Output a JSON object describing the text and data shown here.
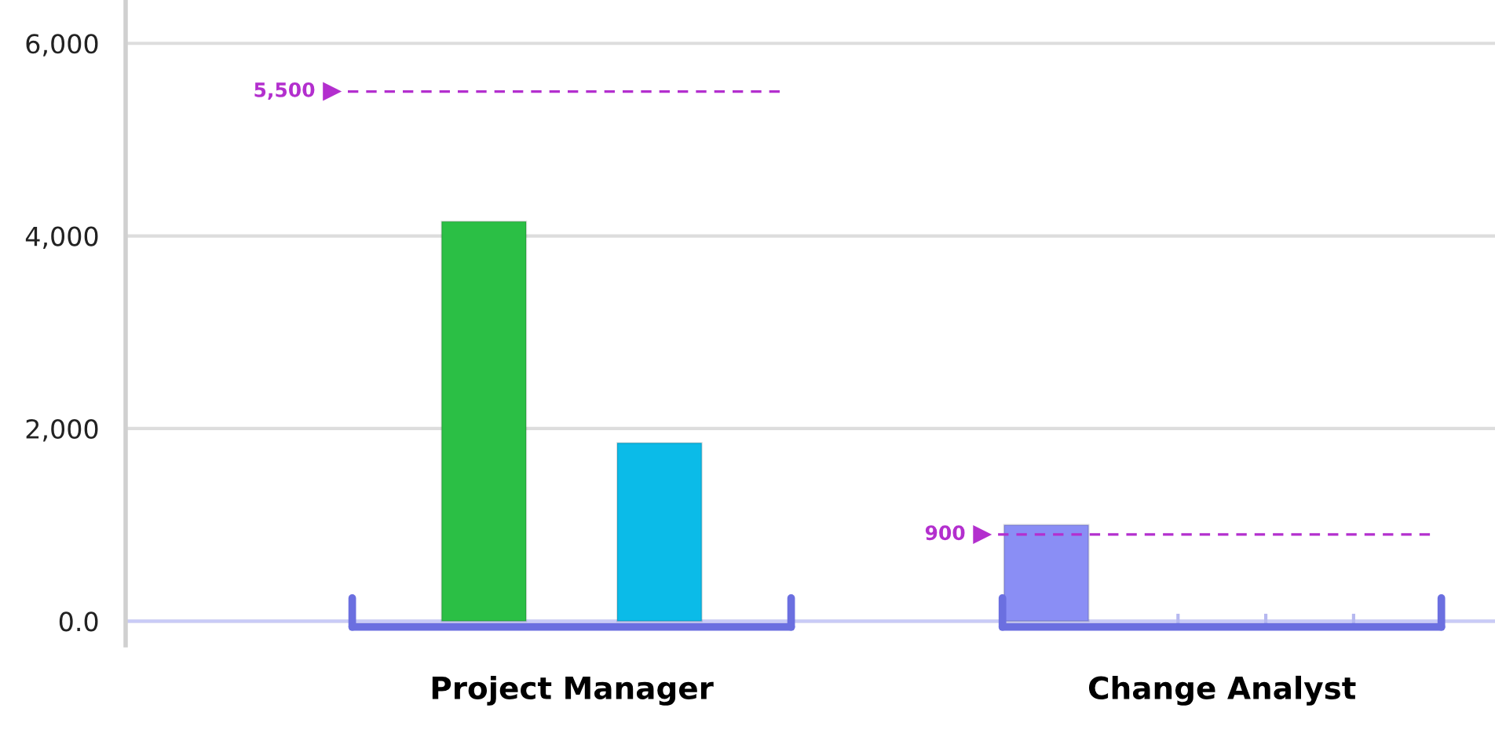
{
  "chart_data": {
    "type": "bar",
    "categories": [
      "Project Manager",
      "Change Analyst"
    ],
    "series": [
      {
        "color": "#2bbf45",
        "values": [
          4150,
          null
        ]
      },
      {
        "color": "#0bbbe8",
        "values": [
          1850,
          null
        ]
      },
      {
        "color": "#8a8ef5",
        "values": [
          null,
          1000
        ]
      }
    ],
    "ylim": [
      -250,
      6450
    ],
    "yticks": [
      {
        "value": 0,
        "label": "0.0"
      },
      {
        "value": 2000,
        "label": "2,000"
      },
      {
        "value": 4000,
        "label": "4,000"
      },
      {
        "value": 6000,
        "label": "6,000"
      }
    ],
    "grid": "y",
    "ref_lines": [
      {
        "axis": "y",
        "value": 5500,
        "label": "5,500",
        "color": "#b32fce",
        "line_style": "dashed"
      },
      {
        "axis": "y",
        "value": 900,
        "label": "900",
        "color": "#b32fce",
        "line_style": "dashed"
      },
      {
        "axis": "y",
        "value": 0,
        "color": "#c9cbf7",
        "line_style": "solid"
      }
    ]
  }
}
